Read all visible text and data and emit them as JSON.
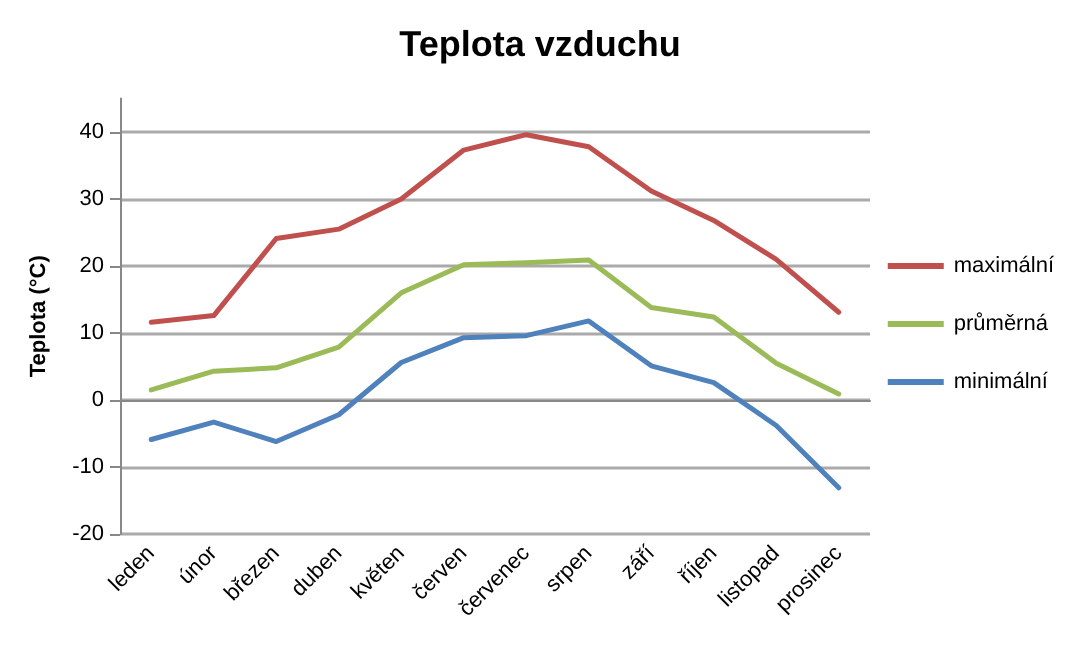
{
  "chart_data": {
    "type": "line",
    "title": "Teplota vzduchu",
    "ylabel": "Teplota (°C)",
    "categories": [
      "leden",
      "únor",
      "březen",
      "duben",
      "květen",
      "červen",
      "červenec",
      "srpen",
      "září",
      "říjen",
      "listopad",
      "prosinec"
    ],
    "series": [
      {
        "name": "maximální",
        "color": "#c0504d",
        "values": [
          11.6,
          12.6,
          24.1,
          25.5,
          30,
          37.3,
          39.6,
          37.8,
          31.2,
          26.8,
          21,
          13.1
        ]
      },
      {
        "name": "průměrná",
        "color": "#9bbb59",
        "values": [
          1.5,
          4.3,
          4.8,
          7.9,
          16,
          20.2,
          20.5,
          20.9,
          13.8,
          12.4,
          5.5,
          0.9
        ]
      },
      {
        "name": "minimální",
        "color": "#4f81bd",
        "values": [
          -5.9,
          -3.3,
          -6.2,
          -2.2,
          5.6,
          9.3,
          9.6,
          11.8,
          5.1,
          2.6,
          -3.8,
          -13.1
        ]
      }
    ],
    "ylim": [
      -20,
      45
    ],
    "yticks": [
      -20,
      -10,
      0,
      10,
      20,
      30,
      40
    ],
    "grid": "y",
    "legend": "right",
    "marker": "none",
    "line_style": "solid"
  }
}
